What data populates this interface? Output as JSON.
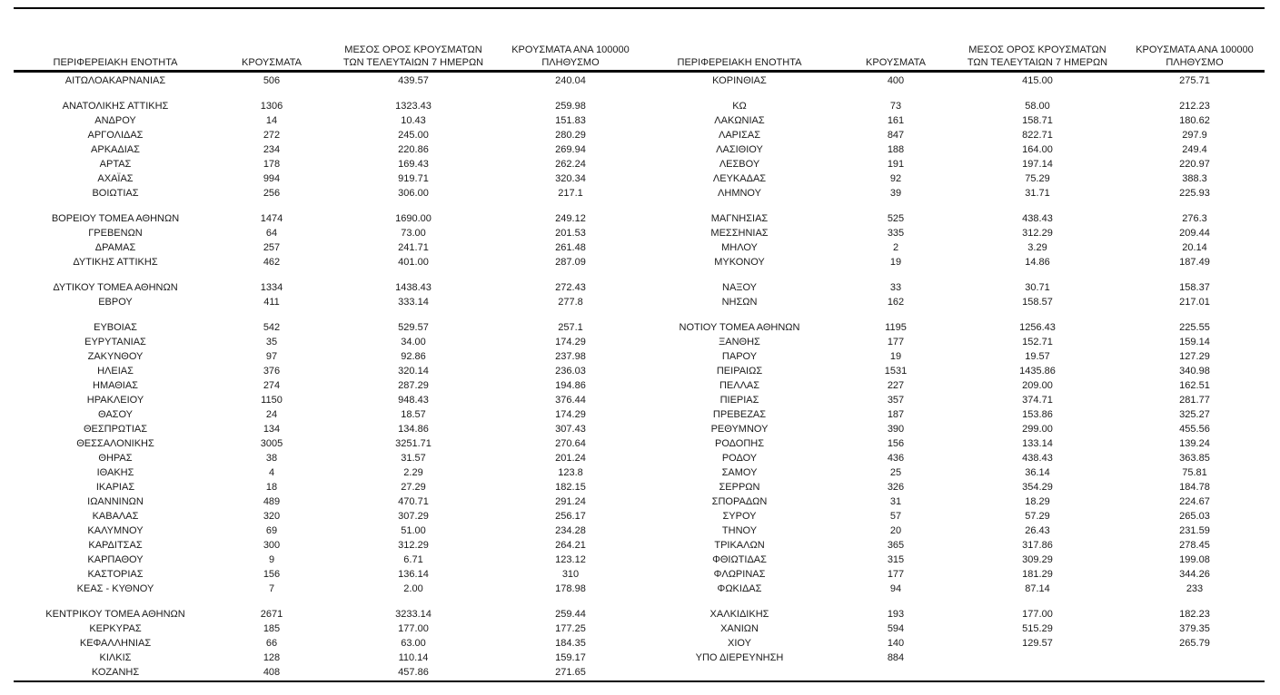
{
  "colors": {
    "background": "#ffffff",
    "text": "#1a1a1a",
    "rule": "#000000"
  },
  "header": {
    "col_region": "ΠΕΡΙΦΕΡΕΙΑΚΗ ΕΝΟΤΗΤΑ",
    "col_cases": "ΚΡΟΥΣΜΑΤΑ",
    "col_avg7_line1": "ΜΕΣΟΣ ΟΡΟΣ ΚΡΟΥΣΜΑΤΩΝ",
    "col_avg7_line2": "ΤΩΝ ΤΕΛΕΥΤΑΙΩΝ 7 ΗΜΕΡΩΝ",
    "col_per100k_line1": "ΚΡΟΥΣΜΑΤΑ ΑΝΑ 100000",
    "col_per100k_line2": "ΠΛΗΘΥΣΜΟ"
  },
  "left_table": {
    "groups": [
      [
        [
          "ΑΙΤΩΛΟΑΚΑΡΝΑΝΙΑΣ",
          "506",
          "439.57",
          "240.04"
        ]
      ],
      [
        [
          "ΑΝΑΤΟΛΙΚΗΣ ΑΤΤΙΚΗΣ",
          "1306",
          "1323.43",
          "259.98"
        ],
        [
          "ΑΝΔΡΟΥ",
          "14",
          "10.43",
          "151.83"
        ],
        [
          "ΑΡΓΟΛΙΔΑΣ",
          "272",
          "245.00",
          "280.29"
        ],
        [
          "ΑΡΚΑΔΙΑΣ",
          "234",
          "220.86",
          "269.94"
        ],
        [
          "ΑΡΤΑΣ",
          "178",
          "169.43",
          "262.24"
        ],
        [
          "ΑΧΑΪΑΣ",
          "994",
          "919.71",
          "320.34"
        ],
        [
          "ΒΟΙΩΤΙΑΣ",
          "256",
          "306.00",
          "217.1"
        ]
      ],
      [
        [
          "ΒΟΡΕΙΟΥ ΤΟΜΕΑ ΑΘΗΝΩΝ",
          "1474",
          "1690.00",
          "249.12"
        ],
        [
          "ΓΡΕΒΕΝΩΝ",
          "64",
          "73.00",
          "201.53"
        ],
        [
          "ΔΡΑΜΑΣ",
          "257",
          "241.71",
          "261.48"
        ],
        [
          "ΔΥΤΙΚΗΣ ΑΤΤΙΚΗΣ",
          "462",
          "401.00",
          "287.09"
        ]
      ],
      [
        [
          "ΔΥΤΙΚΟΥ ΤΟΜΕΑ ΑΘΗΝΩΝ",
          "1334",
          "1438.43",
          "272.43"
        ],
        [
          "ΕΒΡΟΥ",
          "411",
          "333.14",
          "277.8"
        ]
      ],
      [
        [
          "ΕΥΒΟΙΑΣ",
          "542",
          "529.57",
          "257.1"
        ],
        [
          "ΕΥΡΥΤΑΝΙΑΣ",
          "35",
          "34.00",
          "174.29"
        ],
        [
          "ΖΑΚΥΝΘΟΥ",
          "97",
          "92.86",
          "237.98"
        ],
        [
          "ΗΛΕΙΑΣ",
          "376",
          "320.14",
          "236.03"
        ],
        [
          "ΗΜΑΘΙΑΣ",
          "274",
          "287.29",
          "194.86"
        ],
        [
          "ΗΡΑΚΛΕΙΟΥ",
          "1150",
          "948.43",
          "376.44"
        ],
        [
          "ΘΑΣΟΥ",
          "24",
          "18.57",
          "174.29"
        ],
        [
          "ΘΕΣΠΡΩΤΙΑΣ",
          "134",
          "134.86",
          "307.43"
        ],
        [
          "ΘΕΣΣΑΛΟΝΙΚΗΣ",
          "3005",
          "3251.71",
          "270.64"
        ],
        [
          "ΘΗΡΑΣ",
          "38",
          "31.57",
          "201.24"
        ],
        [
          "ΙΘΑΚΗΣ",
          "4",
          "2.29",
          "123.8"
        ],
        [
          "ΙΚΑΡΙΑΣ",
          "18",
          "27.29",
          "182.15"
        ],
        [
          "ΙΩΑΝΝΙΝΩΝ",
          "489",
          "470.71",
          "291.24"
        ],
        [
          "ΚΑΒΑΛΑΣ",
          "320",
          "307.29",
          "256.17"
        ],
        [
          "ΚΑΛΥΜΝΟΥ",
          "69",
          "51.00",
          "234.28"
        ],
        [
          "ΚΑΡΔΙΤΣΑΣ",
          "300",
          "312.29",
          "264.21"
        ],
        [
          "ΚΑΡΠΑΘΟΥ",
          "9",
          "6.71",
          "123.12"
        ],
        [
          "ΚΑΣΤΟΡΙΑΣ",
          "156",
          "136.14",
          "310"
        ],
        [
          "ΚΕΑΣ - ΚΥΘΝΟΥ",
          "7",
          "2.00",
          "178.98"
        ]
      ],
      [
        [
          "ΚΕΝΤΡΙΚΟΥ ΤΟΜΕΑ ΑΘΗΝΩΝ",
          "2671",
          "3233.14",
          "259.44"
        ],
        [
          "ΚΕΡΚΥΡΑΣ",
          "185",
          "177.00",
          "177.25"
        ],
        [
          "ΚΕΦΑΛΛΗΝΙΑΣ",
          "66",
          "63.00",
          "184.35"
        ],
        [
          "ΚΙΛΚΙΣ",
          "128",
          "110.14",
          "159.17"
        ],
        [
          "ΚΟΖΑΝΗΣ",
          "408",
          "457.86",
          "271.65"
        ]
      ]
    ]
  },
  "right_table": {
    "groups": [
      [
        [
          "ΚΟΡΙΝΘΙΑΣ",
          "400",
          "415.00",
          "275.71"
        ]
      ],
      [
        [
          "ΚΩ",
          "73",
          "58.00",
          "212.23"
        ],
        [
          "ΛΑΚΩΝΙΑΣ",
          "161",
          "158.71",
          "180.62"
        ],
        [
          "ΛΑΡΙΣΑΣ",
          "847",
          "822.71",
          "297.9"
        ],
        [
          "ΛΑΣΙΘΙΟΥ",
          "188",
          "164.00",
          "249.4"
        ],
        [
          "ΛΕΣΒΟΥ",
          "191",
          "197.14",
          "220.97"
        ],
        [
          "ΛΕΥΚΑΔΑΣ",
          "92",
          "75.29",
          "388.3"
        ],
        [
          "ΛΗΜΝΟΥ",
          "39",
          "31.71",
          "225.93"
        ]
      ],
      [
        [
          "ΜΑΓΝΗΣΙΑΣ",
          "525",
          "438.43",
          "276.3"
        ],
        [
          "ΜΕΣΣΗΝΙΑΣ",
          "335",
          "312.29",
          "209.44"
        ],
        [
          "ΜΗΛΟΥ",
          "2",
          "3.29",
          "20.14"
        ],
        [
          "ΜΥΚΟΝΟΥ",
          "19",
          "14.86",
          "187.49"
        ]
      ],
      [
        [
          "ΝΑΞΟΥ",
          "33",
          "30.71",
          "158.37"
        ],
        [
          "ΝΗΣΩΝ",
          "162",
          "158.57",
          "217.01"
        ]
      ],
      [
        [
          "ΝΟΤΙΟΥ ΤΟΜΕΑ ΑΘΗΝΩΝ",
          "1195",
          "1256.43",
          "225.55"
        ],
        [
          "ΞΑΝΘΗΣ",
          "177",
          "152.71",
          "159.14"
        ],
        [
          "ΠΑΡΟΥ",
          "19",
          "19.57",
          "127.29"
        ],
        [
          "ΠΕΙΡΑΙΩΣ",
          "1531",
          "1435.86",
          "340.98"
        ],
        [
          "ΠΕΛΛΑΣ",
          "227",
          "209.00",
          "162.51"
        ],
        [
          "ΠΙΕΡΙΑΣ",
          "357",
          "374.71",
          "281.77"
        ],
        [
          "ΠΡΕΒΕΖΑΣ",
          "187",
          "153.86",
          "325.27"
        ],
        [
          "ΡΕΘΥΜΝΟΥ",
          "390",
          "299.00",
          "455.56"
        ],
        [
          "ΡΟΔΟΠΗΣ",
          "156",
          "133.14",
          "139.24"
        ],
        [
          "ΡΟΔΟΥ",
          "436",
          "438.43",
          "363.85"
        ],
        [
          "ΣΑΜΟΥ",
          "25",
          "36.14",
          "75.81"
        ],
        [
          "ΣΕΡΡΩΝ",
          "326",
          "354.29",
          "184.78"
        ],
        [
          "ΣΠΟΡΑΔΩΝ",
          "31",
          "18.29",
          "224.67"
        ],
        [
          "ΣΥΡΟΥ",
          "57",
          "57.29",
          "265.03"
        ],
        [
          "ΤΗΝΟΥ",
          "20",
          "26.43",
          "231.59"
        ],
        [
          "ΤΡΙΚΑΛΩΝ",
          "365",
          "317.86",
          "278.45"
        ],
        [
          "ΦΘΙΩΤΙΔΑΣ",
          "315",
          "309.29",
          "199.08"
        ],
        [
          "ΦΛΩΡΙΝΑΣ",
          "177",
          "181.29",
          "344.26"
        ],
        [
          "ΦΩΚΙΔΑΣ",
          "94",
          "87.14",
          "233"
        ]
      ],
      [
        [
          "ΧΑΛΚΙΔΙΚΗΣ",
          "193",
          "177.00",
          "182.23"
        ],
        [
          "ΧΑΝΙΩΝ",
          "594",
          "515.29",
          "379.35"
        ],
        [
          "ΧΙΟΥ",
          "140",
          "129.57",
          "265.79"
        ],
        [
          "ΥΠΟ ΔΙΕΡΕΥΝΗΣΗ",
          "884",
          "",
          ""
        ]
      ]
    ]
  }
}
